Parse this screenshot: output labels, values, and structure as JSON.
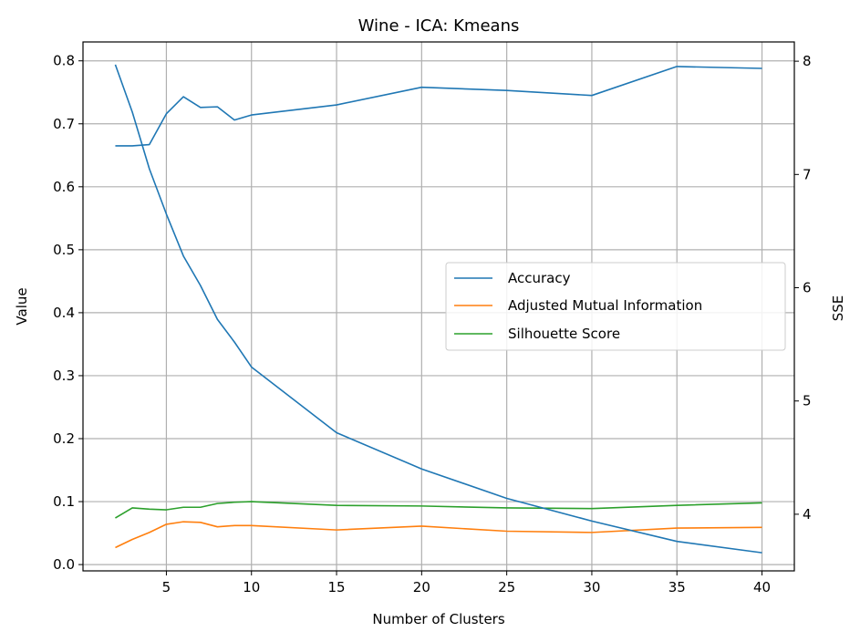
{
  "chart_data": {
    "type": "line",
    "title": "Wine - ICA: Kmeans",
    "xlabel": "Number of Clusters",
    "ylabel": "Value",
    "y2label": "SSE",
    "x": [
      2,
      3,
      4,
      5,
      6,
      7,
      8,
      9,
      10,
      15,
      20,
      25,
      30,
      35,
      40
    ],
    "xticks": [
      5,
      10,
      15,
      20,
      25,
      30,
      35,
      40
    ],
    "ylim": [
      -0.01,
      0.83
    ],
    "yticks": [
      0.0,
      0.1,
      0.2,
      0.3,
      0.4,
      0.5,
      0.6,
      0.7,
      0.8
    ],
    "y2lim": [
      3.5,
      8.17
    ],
    "y2ticks": [
      4,
      5,
      6,
      7,
      8
    ],
    "grid": true,
    "legend_position": "center-right",
    "series": [
      {
        "name": "Accuracy",
        "axis": "left",
        "color": "#1f77b4",
        "values": [
          0.665,
          0.665,
          0.667,
          0.716,
          0.743,
          0.726,
          0.727,
          0.706,
          0.714,
          0.73,
          0.758,
          0.753,
          0.745,
          0.791,
          0.788
        ]
      },
      {
        "name": "Adjusted Mutual Information",
        "axis": "left",
        "color": "#ff7f0e",
        "values": [
          0.027,
          0.04,
          0.051,
          0.064,
          0.068,
          0.067,
          0.06,
          0.062,
          0.062,
          0.055,
          0.061,
          0.053,
          0.051,
          0.058,
          0.059
        ]
      },
      {
        "name": "Silhouette Score",
        "axis": "left",
        "color": "#2ca02c",
        "values": [
          0.074,
          0.09,
          0.088,
          0.087,
          0.091,
          0.091,
          0.097,
          0.099,
          0.1,
          0.094,
          0.093,
          0.09,
          0.089,
          0.094,
          0.098
        ]
      },
      {
        "name": "SSE",
        "axis": "right",
        "color": "#1f77b4",
        "values": [
          7.97,
          7.55,
          7.05,
          6.65,
          6.28,
          6.02,
          5.72,
          5.52,
          5.3,
          4.72,
          4.4,
          4.14,
          3.94,
          3.76,
          3.66
        ]
      }
    ]
  }
}
